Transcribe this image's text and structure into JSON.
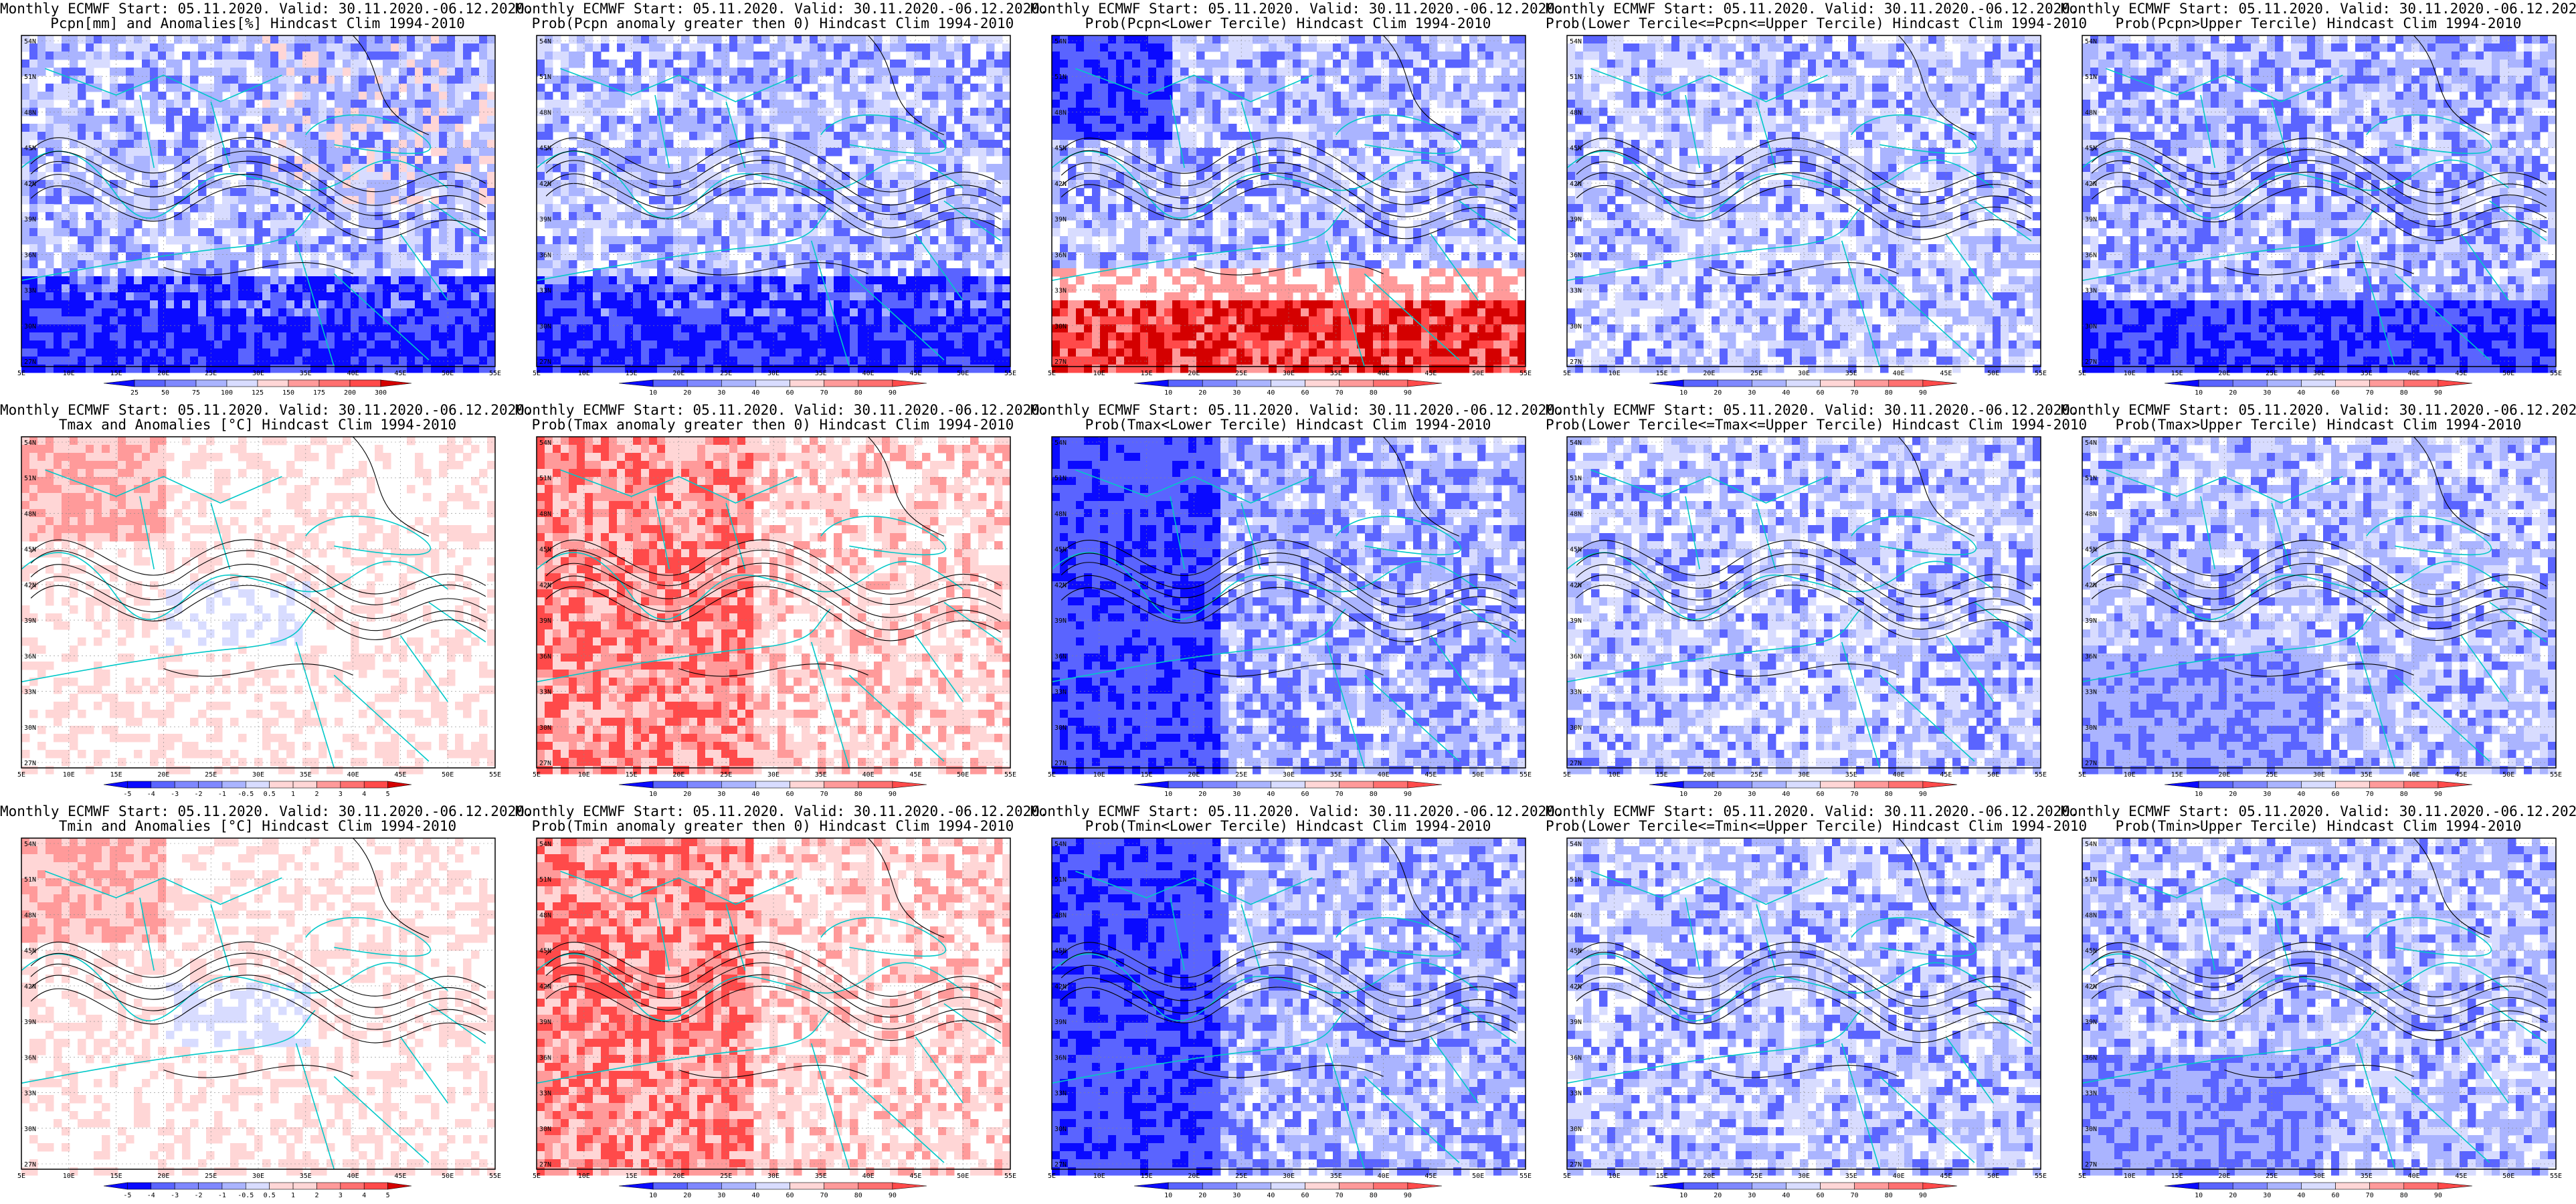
{
  "figure": {
    "columns": 5,
    "rows": 3,
    "title_line1": "Monthly ECMWF Start: 05.11.2020. Valid: 30.11.2020.-06.12.2020.",
    "lat_ticks": [
      "54N",
      "51N",
      "48N",
      "45N",
      "42N",
      "39N",
      "36N",
      "33N",
      "30N",
      "27N"
    ],
    "lon_ticks": [
      "5E",
      "10E",
      "15E",
      "20E",
      "25E",
      "30E",
      "35E",
      "40E",
      "45E",
      "50E",
      "55E"
    ],
    "colors": {
      "dark_blue": "#0a0aff",
      "mid_blue": "#5a64ff",
      "light_blue": "#aab4ff",
      "pale_blue": "#d8dcff",
      "pale_red": "#ffd6d6",
      "light_red": "#ff9a9a",
      "mid_red": "#ff4a4a",
      "dark_red": "#d40000",
      "coast": "#00c8c8",
      "contour": "#000000"
    }
  },
  "panels": [
    {
      "id": "pcpn-anom",
      "row": 0,
      "col": 0,
      "title2": "Pcpn[mm] and Anomalies[%] Hindcast Clim 1994-2010",
      "scheme": "pcpn-anom",
      "colorbar": [
        "25",
        "50",
        "75",
        "100",
        "125",
        "150",
        "175",
        "200",
        "300"
      ]
    },
    {
      "id": "pcpn-prob-pos",
      "row": 0,
      "col": 1,
      "title2": "Prob(Pcpn anomaly greater then 0) Hindcast Clim 1994-2010",
      "scheme": "pcpn-prob",
      "colorbar": [
        "10",
        "20",
        "30",
        "40",
        "60",
        "70",
        "80",
        "90"
      ]
    },
    {
      "id": "pcpn-lower",
      "row": 0,
      "col": 2,
      "title2": "Prob(Pcpn<Lower Tercile) Hindcast Clim 1994-2010",
      "scheme": "pcpn-lower",
      "colorbar": [
        "10",
        "20",
        "30",
        "40",
        "60",
        "70",
        "80",
        "90"
      ]
    },
    {
      "id": "pcpn-middle",
      "row": 0,
      "col": 3,
      "title2": "Prob(Lower Tercile<=Pcpn<=Upper Tercile) Hindcast Clim 1994-2010",
      "scheme": "middle",
      "colorbar": [
        "10",
        "20",
        "30",
        "40",
        "60",
        "70",
        "80",
        "90"
      ]
    },
    {
      "id": "pcpn-upper",
      "row": 0,
      "col": 4,
      "title2": "Prob(Pcpn>Upper Tercile) Hindcast Clim 1994-2010",
      "scheme": "pcpn-upper",
      "colorbar": [
        "10",
        "20",
        "30",
        "40",
        "60",
        "70",
        "80",
        "90"
      ]
    },
    {
      "id": "tmax-anom",
      "row": 1,
      "col": 0,
      "title2": "Tmax and Anomalies [°C] Hindcast Clim 1994-2010",
      "scheme": "t-anom",
      "colorbar": [
        "-5",
        "-4",
        "-3",
        "-2",
        "-1",
        "-0.5",
        "0.5",
        "1",
        "2",
        "3",
        "4",
        "5"
      ]
    },
    {
      "id": "tmax-prob-pos",
      "row": 1,
      "col": 1,
      "title2": "Prob(Tmax anomaly greater then 0) Hindcast Clim 1994-2010",
      "scheme": "t-prob",
      "colorbar": [
        "10",
        "20",
        "30",
        "40",
        "60",
        "70",
        "80",
        "90"
      ]
    },
    {
      "id": "tmax-lower",
      "row": 1,
      "col": 2,
      "title2": "Prob(Tmax<Lower Tercile) Hindcast Clim 1994-2010",
      "scheme": "t-lower",
      "colorbar": [
        "10",
        "20",
        "30",
        "40",
        "60",
        "70",
        "80",
        "90"
      ]
    },
    {
      "id": "tmax-middle",
      "row": 1,
      "col": 3,
      "title2": "Prob(Lower Tercile<=Tmax<=Upper Tercile) Hindcast Clim 1994-2010",
      "scheme": "middle",
      "colorbar": [
        "10",
        "20",
        "30",
        "40",
        "60",
        "70",
        "80",
        "90"
      ]
    },
    {
      "id": "tmax-upper",
      "row": 1,
      "col": 4,
      "title2": "Prob(Tmax>Upper Tercile) Hindcast Clim 1994-2010",
      "scheme": "t-upper",
      "colorbar": [
        "10",
        "20",
        "30",
        "40",
        "60",
        "70",
        "80",
        "90"
      ]
    },
    {
      "id": "tmin-anom",
      "row": 2,
      "col": 0,
      "title2": "Tmin and Anomalies [°C] Hindcast Clim 1994-2010",
      "scheme": "t-anom",
      "colorbar": [
        "-5",
        "-4",
        "-3",
        "-2",
        "-1",
        "-0.5",
        "0.5",
        "1",
        "2",
        "3",
        "4",
        "5"
      ]
    },
    {
      "id": "tmin-prob-pos",
      "row": 2,
      "col": 1,
      "title2": "Prob(Tmin anomaly greater then 0) Hindcast Clim 1994-2010",
      "scheme": "t-prob",
      "colorbar": [
        "10",
        "20",
        "30",
        "40",
        "60",
        "70",
        "80",
        "90"
      ]
    },
    {
      "id": "tmin-lower",
      "row": 2,
      "col": 2,
      "title2": "Prob(Tmin<Lower Tercile) Hindcast Clim 1994-2010",
      "scheme": "t-lower",
      "colorbar": [
        "10",
        "20",
        "30",
        "40",
        "60",
        "70",
        "80",
        "90"
      ]
    },
    {
      "id": "tmin-middle",
      "row": 2,
      "col": 3,
      "title2": "Prob(Lower Tercile<=Tmin<=Upper Tercile) Hindcast Clim 1994-2010",
      "scheme": "middle",
      "colorbar": [
        "10",
        "20",
        "30",
        "40",
        "60",
        "70",
        "80",
        "90"
      ]
    },
    {
      "id": "tmin-upper",
      "row": 2,
      "col": 4,
      "title2": "Prob(Tmin>Upper Tercile) Hindcast Clim 1994-2010",
      "scheme": "t-upper",
      "colorbar": [
        "10",
        "20",
        "30",
        "40",
        "60",
        "70",
        "80",
        "90"
      ]
    }
  ]
}
